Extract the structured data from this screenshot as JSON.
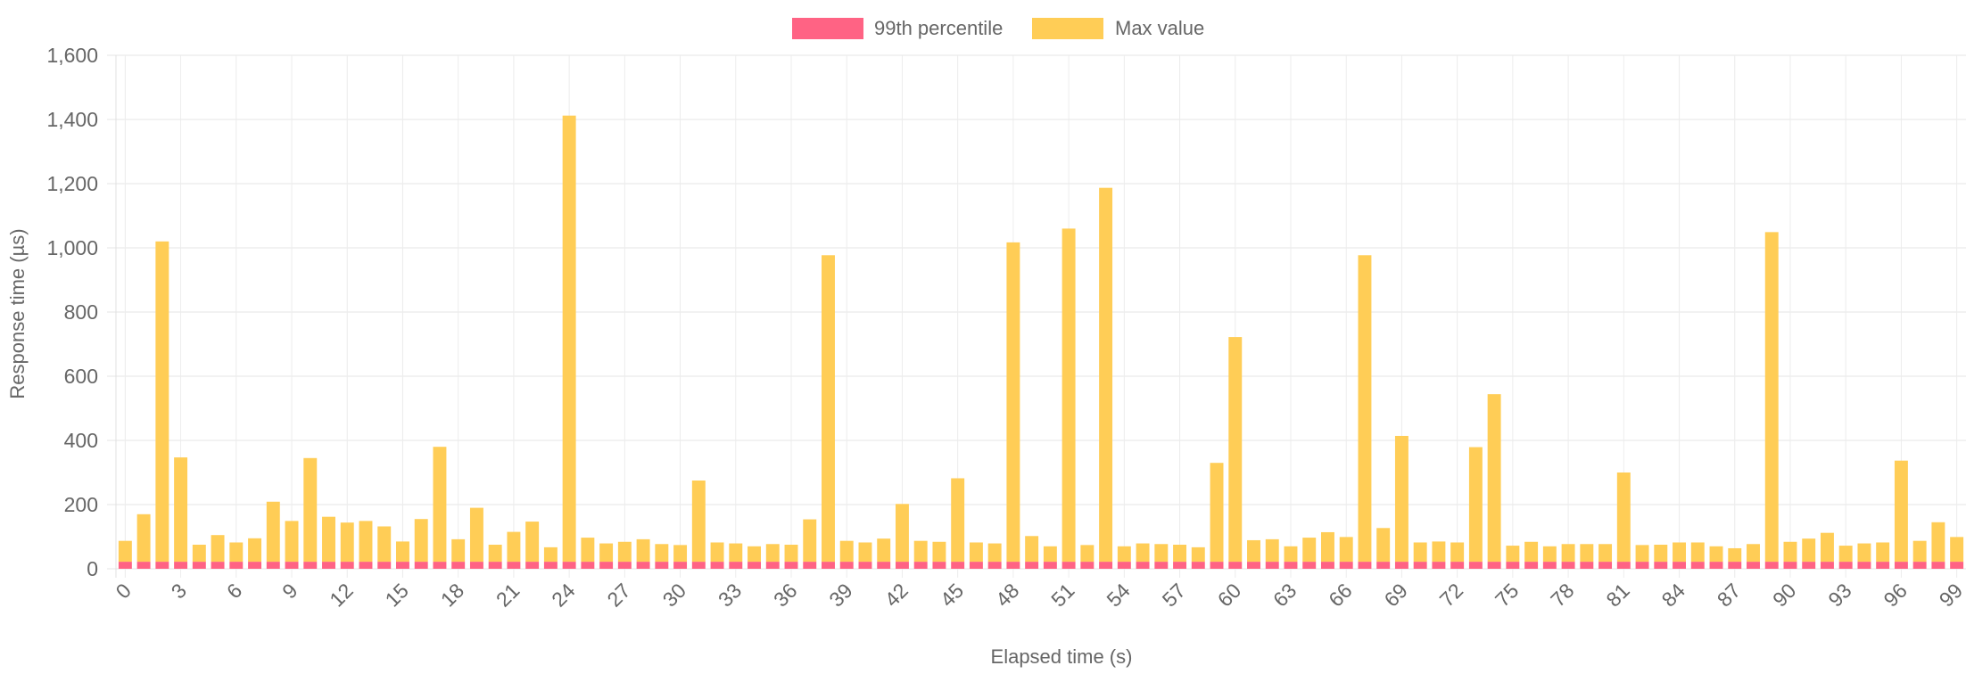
{
  "chart_data": {
    "type": "bar",
    "stacked": true,
    "xlabel": "Elapsed time (s)",
    "ylabel": "Response time (µs)",
    "ylim": [
      0,
      1600
    ],
    "yticks": [
      0,
      200,
      400,
      600,
      800,
      1000,
      1200,
      1400,
      1600
    ],
    "ytick_labels": [
      "0",
      "200",
      "400",
      "600",
      "800",
      "1,000",
      "1,200",
      "1,400",
      "1,600"
    ],
    "x": [
      0,
      1,
      2,
      3,
      4,
      5,
      6,
      7,
      8,
      9,
      10,
      11,
      12,
      13,
      14,
      15,
      16,
      17,
      18,
      19,
      20,
      21,
      22,
      23,
      24,
      25,
      26,
      27,
      28,
      29,
      30,
      31,
      32,
      33,
      34,
      35,
      36,
      37,
      38,
      39,
      40,
      41,
      42,
      43,
      44,
      45,
      46,
      47,
      48,
      49,
      50,
      51,
      52,
      53,
      54,
      55,
      56,
      57,
      58,
      59,
      60,
      61,
      62,
      63,
      64,
      65,
      66,
      67,
      68,
      69,
      70,
      71,
      72,
      73,
      74,
      75,
      76,
      77,
      78,
      79,
      80,
      81,
      82,
      83,
      84,
      85,
      86,
      87,
      88,
      89,
      90,
      91,
      92,
      93,
      94,
      95,
      96,
      97,
      98,
      99
    ],
    "x_tick_labels": [
      "0",
      "3",
      "6",
      "9",
      "12",
      "15",
      "18",
      "21",
      "24",
      "27",
      "30",
      "33",
      "36",
      "39",
      "42",
      "45",
      "48",
      "51",
      "54",
      "57",
      "60",
      "63",
      "66",
      "69",
      "72",
      "75",
      "78",
      "81",
      "84",
      "87",
      "90",
      "93",
      "96",
      "99"
    ],
    "grid": true,
    "legend_position": "top-center",
    "series": [
      {
        "name": "99th percentile",
        "color": "#ff6384",
        "values": [
          22,
          22,
          22,
          22,
          22,
          22,
          22,
          22,
          22,
          22,
          22,
          22,
          22,
          22,
          22,
          22,
          22,
          22,
          22,
          22,
          22,
          22,
          22,
          22,
          22,
          22,
          22,
          22,
          22,
          22,
          22,
          22,
          22,
          22,
          22,
          22,
          22,
          22,
          22,
          22,
          22,
          22,
          22,
          22,
          22,
          22,
          22,
          22,
          22,
          22,
          22,
          22,
          22,
          22,
          22,
          22,
          22,
          22,
          22,
          22,
          22,
          22,
          22,
          22,
          22,
          22,
          22,
          22,
          22,
          22,
          22,
          22,
          22,
          22,
          22,
          22,
          22,
          22,
          22,
          22,
          22,
          22,
          22,
          22,
          22,
          22,
          22,
          22,
          22,
          22,
          22,
          22,
          22,
          22,
          22,
          22,
          22,
          22,
          22,
          22
        ]
      },
      {
        "name": "Max value",
        "color": "#ffcd56",
        "values": [
          65,
          148,
          998,
          325,
          53,
          83,
          60,
          73,
          187,
          127,
          323,
          140,
          122,
          127,
          110,
          63,
          133,
          358,
          70,
          168,
          53,
          93,
          125,
          45,
          1390,
          75,
          57,
          62,
          70,
          55,
          52,
          253,
          60,
          57,
          48,
          55,
          53,
          132,
          955,
          65,
          60,
          72,
          180,
          65,
          62,
          260,
          60,
          57,
          995,
          80,
          48,
          1038,
          52,
          1165,
          48,
          57,
          55,
          53,
          45,
          308,
          700,
          67,
          70,
          48,
          75,
          92,
          77,
          955,
          105,
          392,
          60,
          63,
          60,
          357,
          522,
          50,
          62,
          48,
          55,
          55,
          55,
          278,
          52,
          53,
          60,
          60,
          48,
          42,
          55,
          1027,
          62,
          72,
          90,
          50,
          57,
          60,
          315,
          65,
          123,
          77
        ]
      }
    ]
  }
}
